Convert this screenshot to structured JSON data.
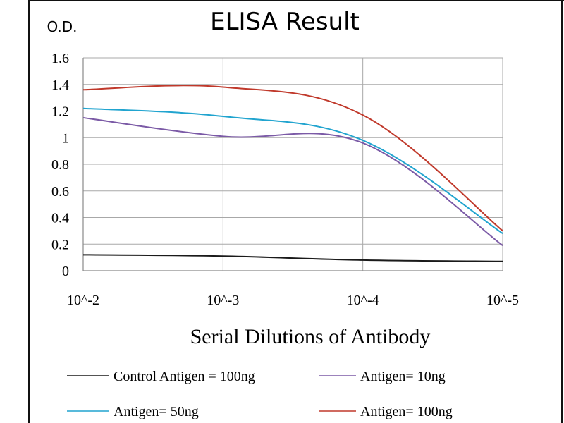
{
  "chart_data": {
    "type": "line",
    "title": "ELISA Result",
    "ylabel": "O.D.",
    "xlabel": "Serial Dilutions  of Antibody",
    "categories": [
      "10^-2",
      "10^-3",
      "10^-4",
      "10^-5"
    ],
    "ylim": [
      0,
      1.6
    ],
    "yticks": [
      "0",
      "0.2",
      "0.4",
      "0.6",
      "0.8",
      "1",
      "1.2",
      "1.4",
      "1.6"
    ],
    "grid": true,
    "legend_position": "bottom",
    "series": [
      {
        "name": "Control Antigen = 100ng",
        "color": "#1a1a1a",
        "values": [
          0.12,
          0.11,
          0.08,
          0.07
        ]
      },
      {
        "name": "Antigen= 10ng",
        "color": "#7b5aa6",
        "values": [
          1.15,
          1.01,
          0.96,
          0.19
        ]
      },
      {
        "name": "Antigen= 50ng",
        "color": "#21a4cf",
        "values": [
          1.22,
          1.16,
          0.98,
          0.28
        ]
      },
      {
        "name": "Antigen= 100ng",
        "color": "#c0392b",
        "values": [
          1.36,
          1.38,
          1.17,
          0.3
        ]
      }
    ]
  }
}
